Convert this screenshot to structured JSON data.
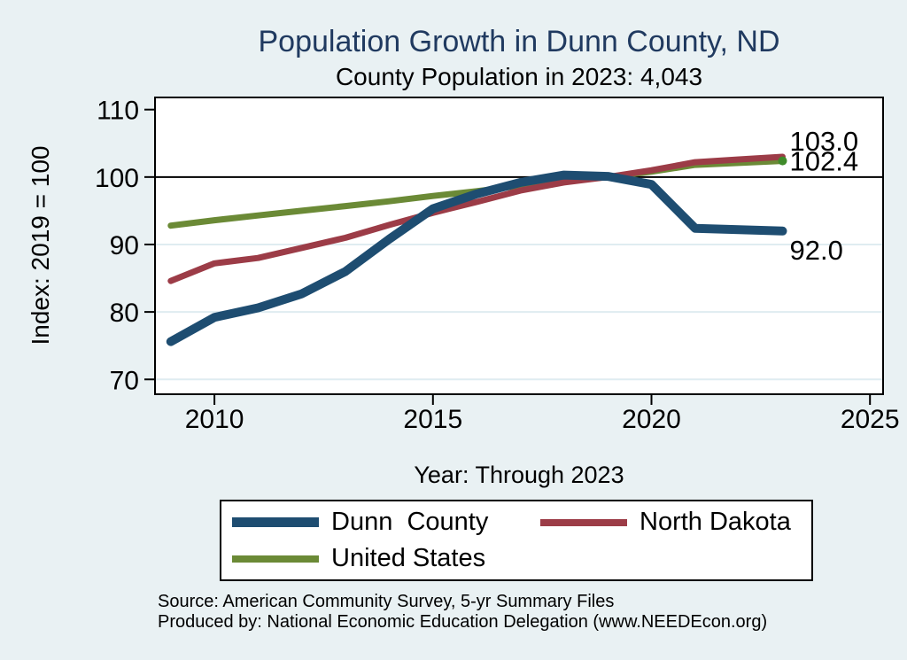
{
  "chart_data": {
    "type": "line",
    "title": "Population Growth in Dunn County, ND",
    "subtitle": "County Population in 2023: 4,043",
    "xlabel": "Year: Through 2023",
    "ylabel": "Index: 2019 = 100",
    "x": [
      2009,
      2010,
      2011,
      2012,
      2013,
      2014,
      2015,
      2016,
      2017,
      2018,
      2019,
      2020,
      2021,
      2022,
      2023
    ],
    "series": [
      {
        "name": "Dunn  County",
        "color": "#1e4d71",
        "line_width": 10,
        "values": [
          75.6,
          79.2,
          80.6,
          82.7,
          86.0,
          90.8,
          95.3,
          97.5,
          99.2,
          100.3,
          100.1,
          98.9,
          92.4,
          92.2,
          92.0
        ],
        "end_label": "92.0"
      },
      {
        "name": "North Dakota",
        "color": "#9c3c47",
        "line_width": 7,
        "values": [
          84.6,
          87.2,
          88.0,
          89.5,
          91.0,
          92.9,
          94.7,
          96.3,
          98.0,
          99.2,
          100.0,
          101.0,
          102.2,
          102.6,
          103.0
        ],
        "end_label": "103.0"
      },
      {
        "name": "United States",
        "color": "#6b8a36",
        "line_width": 7,
        "values": [
          92.8,
          93.6,
          94.3,
          95.0,
          95.7,
          96.4,
          97.2,
          97.9,
          98.7,
          99.4,
          100.0,
          100.8,
          101.8,
          102.1,
          102.4
        ],
        "end_label": "102.4",
        "end_dot": true,
        "end_dot_color": "#3f8b2a"
      }
    ],
    "xticks": [
      2010,
      2015,
      2020,
      2025
    ],
    "yticks": [
      70,
      80,
      90,
      100,
      110
    ],
    "xlim": [
      2008.64,
      2025.3
    ],
    "ylim": [
      67.8,
      111.8
    ],
    "ref_line": 100,
    "grid": true,
    "legend_position": "bottom",
    "colors": {
      "background": "#e9f1f3",
      "plot_background": "#ffffff",
      "gridline": "#dfecf1",
      "axis": "#000000",
      "title": "#203a60"
    }
  },
  "footer": {
    "source": "Source: American Community Survey, 5-yr Summary Files",
    "produced_by": "Produced by: National Economic Education Delegation (www.NEEDEcon.org)"
  }
}
